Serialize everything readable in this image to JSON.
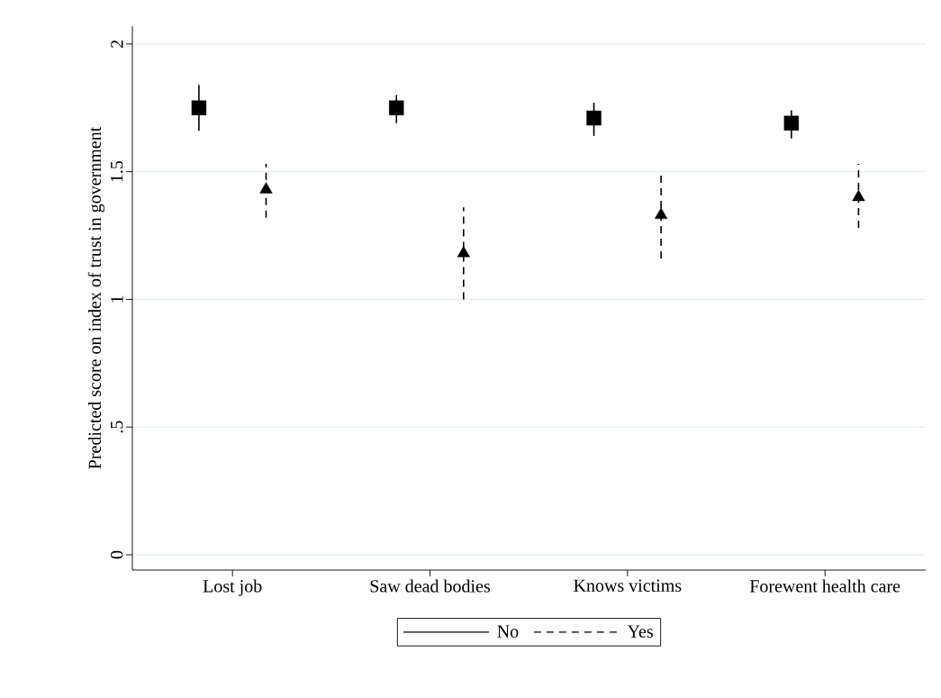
{
  "chart_data": {
    "type": "scatter",
    "ylabel": "Predicted score on index of trust in government",
    "categories": [
      "Lost job",
      "Saw dead bodies",
      "Knows victims",
      "Forewent health care"
    ],
    "series": [
      {
        "name": "No",
        "color": "#000000",
        "marker": "square",
        "line_style": "solid",
        "values": [
          1.75,
          1.75,
          1.71,
          1.69
        ],
        "errors": [
          [
            1.66,
            1.84
          ],
          [
            1.69,
            1.8
          ],
          [
            1.64,
            1.77
          ],
          [
            1.63,
            1.74
          ]
        ]
      },
      {
        "name": "Yes",
        "color": "#000000",
        "marker": "triangle",
        "line_style": "dashed",
        "values": [
          1.43,
          1.18,
          1.33,
          1.4
        ],
        "errors": [
          [
            1.32,
            1.53
          ],
          [
            1.0,
            1.36
          ],
          [
            1.16,
            1.49
          ],
          [
            1.28,
            1.53
          ]
        ]
      }
    ],
    "ylim": [
      -0.06,
      2.07
    ],
    "yticks": [
      0,
      {
        "value": 0.5,
        "label": ".5"
      },
      1,
      {
        "value": 1.5,
        "label": "1.5"
      },
      2
    ],
    "grid": "y",
    "legend": "bottom"
  }
}
